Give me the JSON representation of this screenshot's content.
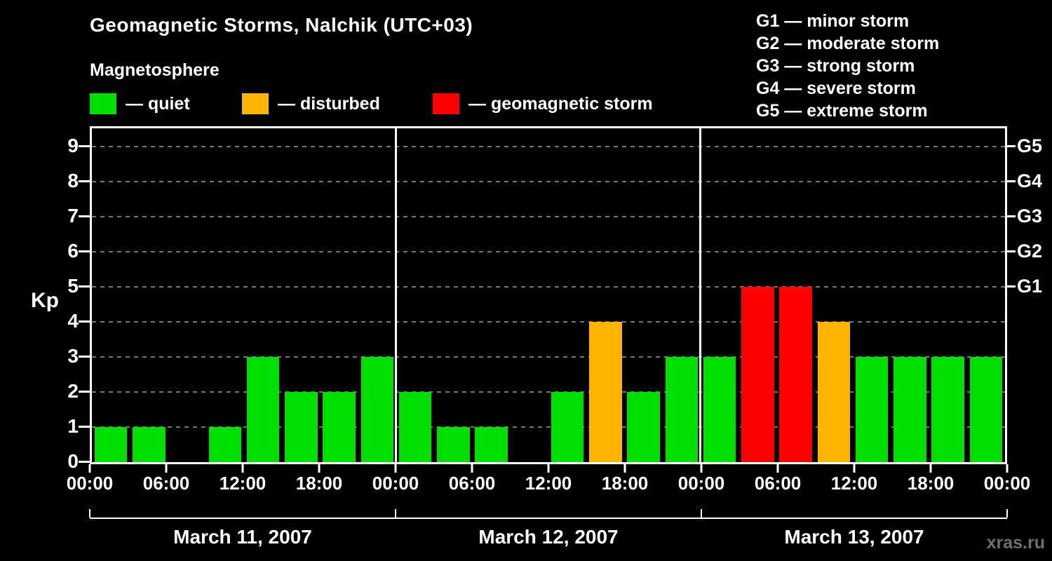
{
  "header": {
    "title": "Geomagnetic Storms, Nalchik (UTC+03)",
    "subtitle": "Magnetosphere"
  },
  "legend": {
    "quiet": {
      "label": "— quiet",
      "color": "#00e000"
    },
    "disturbed": {
      "label": "— disturbed",
      "color": "#ffb400"
    },
    "storm": {
      "label": "— geomagnetic storm",
      "color": "#ff0000"
    }
  },
  "g_legend": [
    "G1 — minor storm",
    "G2 — moderate storm",
    "G3 — strong storm",
    "G4 — severe storm",
    "G5 — extreme storm"
  ],
  "watermark": "xras.ru",
  "chart_data": {
    "type": "bar",
    "title": "Geomagnetic Storms, Nalchik (UTC+03)",
    "ylabel": "Kp",
    "ylim": [
      0,
      9
    ],
    "yticks": [
      0,
      1,
      2,
      3,
      4,
      5,
      6,
      7,
      8,
      9
    ],
    "grid": "dashed horizontal gridlines at Kp 1-9",
    "legend_position": "top",
    "interval_hours": 3,
    "x_tick_labels": [
      "00:00",
      "06:00",
      "12:00",
      "18:00",
      "00:00",
      "06:00",
      "12:00",
      "18:00",
      "00:00",
      "06:00",
      "12:00",
      "18:00",
      "00:00"
    ],
    "right_axis": [
      {
        "kp": 5,
        "label": "G1"
      },
      {
        "kp": 6,
        "label": "G2"
      },
      {
        "kp": 7,
        "label": "G3"
      },
      {
        "kp": 8,
        "label": "G4"
      },
      {
        "kp": 9,
        "label": "G5"
      }
    ],
    "days": [
      {
        "date": "March 11, 2007",
        "values": [
          1,
          1,
          0,
          1,
          3,
          2,
          2,
          3
        ]
      },
      {
        "date": "March 12, 2007",
        "values": [
          2,
          1,
          1,
          0,
          2,
          4,
          2,
          3
        ]
      },
      {
        "date": "March 13, 2007",
        "values": [
          3,
          5,
          5,
          4,
          3,
          3,
          3,
          3
        ]
      }
    ],
    "colors": {
      "quiet": "#00e000",
      "disturbed": "#ffb400",
      "storm": "#ff0000"
    },
    "color_rule": {
      "quiet_max": 3,
      "disturbed": 4,
      "storm_min": 5
    }
  }
}
